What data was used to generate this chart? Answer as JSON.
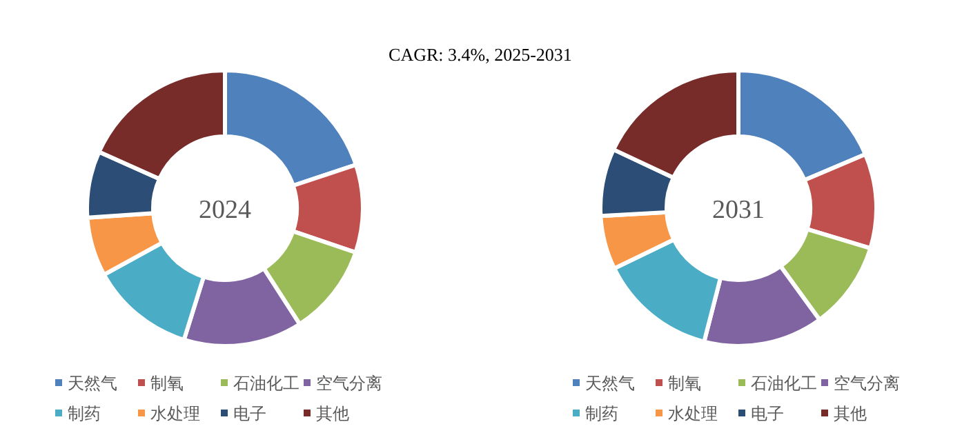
{
  "chart_data": [
    {
      "type": "donut",
      "title": "2024",
      "annotations": [
        "CAGR:  3.4%, 2025-2031"
      ],
      "legend": "bottom",
      "categories": [
        "天然气",
        "制氧",
        "石油化工",
        "空气分离",
        "制药",
        "水处理",
        "电子",
        "其他"
      ],
      "values": [
        19.9,
        10.3,
        10.7,
        13.9,
        12.2,
        6.9,
        7.8,
        18.3
      ],
      "colors": [
        "#4f81bd",
        "#c0504d",
        "#9bbb59",
        "#8064a2",
        "#4bacc6",
        "#f79646",
        "#2c4d75",
        "#772c2a"
      ]
    },
    {
      "type": "donut",
      "title": "2031",
      "legend": "bottom",
      "categories": [
        "天然气",
        "制氧",
        "石油化工",
        "空气分离",
        "制药",
        "水处理",
        "电子",
        "其他"
      ],
      "values": [
        18.6,
        11.1,
        10.3,
        14.0,
        13.8,
        6.3,
        7.9,
        18.0
      ],
      "colors": [
        "#4f81bd",
        "#c0504d",
        "#9bbb59",
        "#8064a2",
        "#4bacc6",
        "#f79646",
        "#2c4d75",
        "#772c2a"
      ]
    }
  ]
}
